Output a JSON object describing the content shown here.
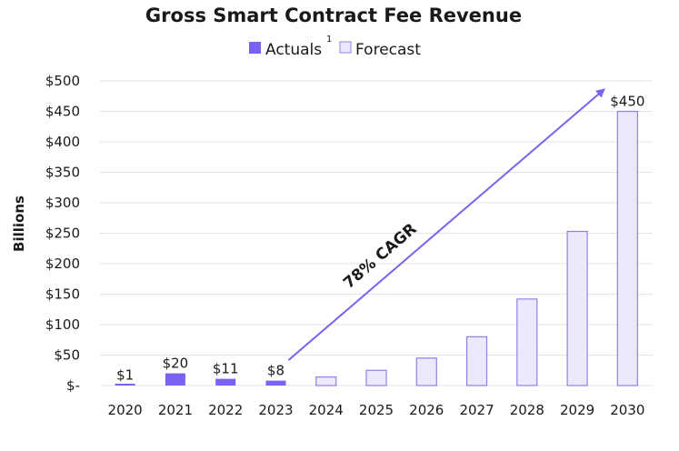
{
  "chart_data": {
    "type": "bar",
    "title": "Gross Smart Contract Fee Revenue",
    "xlabel": "",
    "ylabel": "Billions",
    "ylim": [
      0,
      500
    ],
    "yticks": [
      0,
      50,
      100,
      150,
      200,
      250,
      300,
      350,
      400,
      450,
      500
    ],
    "ytick_labels": [
      "$-",
      "$50",
      "$100",
      "$150",
      "$200",
      "$250",
      "$300",
      "$350",
      "$400",
      "$450",
      "$500"
    ],
    "categories": [
      "2020",
      "2021",
      "2022",
      "2023",
      "2024",
      "2025",
      "2026",
      "2027",
      "2028",
      "2029",
      "2030"
    ],
    "values": [
      1,
      20,
      11,
      8,
      14,
      25,
      45,
      80,
      142,
      253,
      450
    ],
    "bar_types": [
      "actual",
      "actual",
      "actual",
      "actual",
      "forecast",
      "forecast",
      "forecast",
      "forecast",
      "forecast",
      "forecast",
      "forecast"
    ],
    "data_labels": [
      "$1",
      "$20",
      "$11",
      "$8",
      "",
      "",
      "",
      "",
      "",
      "",
      "$450"
    ],
    "legend": [
      {
        "key": "actual",
        "label": "Actuals",
        "superscript": "1"
      },
      {
        "key": "forecast",
        "label": "Forecast"
      }
    ],
    "legend_position": "top-center",
    "annotation": {
      "text": "78% CAGR",
      "from_category": "2023",
      "to_category": "2030"
    },
    "grid": true,
    "colors": {
      "actual_fill": "#7b61f2",
      "forecast_fill": "#ece8fd",
      "forecast_stroke": "#8f80e6",
      "arrow": "#7b61f2",
      "grid": "#e3e3e3"
    }
  }
}
